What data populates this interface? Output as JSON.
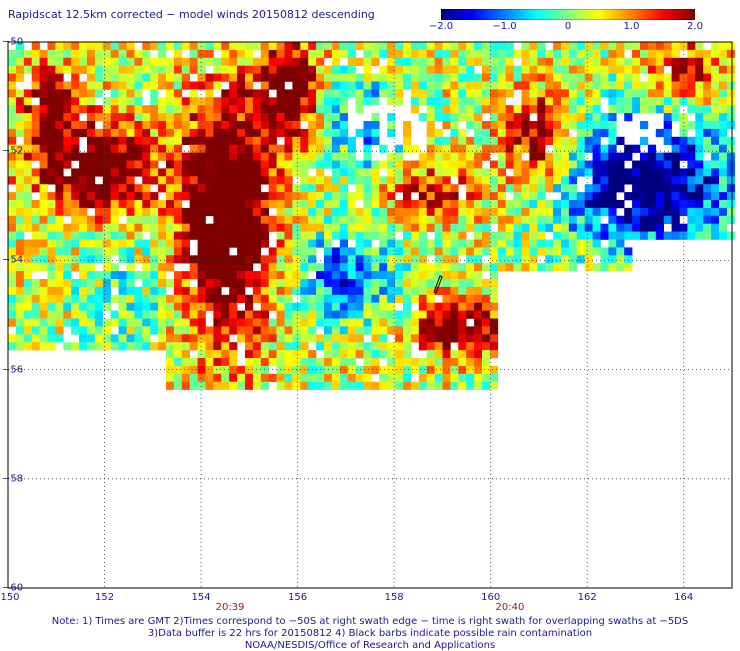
{
  "title": "Rapidscat 12.5km corrected − model winds 20150812 descending",
  "colorbar": {
    "ticks": [
      {
        "value": -2.0,
        "label": "−2.0"
      },
      {
        "value": -1.0,
        "label": "−1.0"
      },
      {
        "value": 0,
        "label": "0"
      },
      {
        "value": 1.0,
        "label": "1.0"
      },
      {
        "value": 2.0,
        "label": "2.0"
      }
    ],
    "range": [
      -2.0,
      2.0
    ],
    "colors": [
      "#00007f",
      "#0000ff",
      "#0080ff",
      "#00ffff",
      "#80ff80",
      "#ffff00",
      "#ff8000",
      "#ff0000",
      "#7f0000"
    ]
  },
  "axes": {
    "lat_labels": [
      "−50",
      "−52",
      "−54",
      "−56",
      "−58",
      "−60"
    ],
    "lat_range": [
      -50,
      -60
    ],
    "lon_labels": [
      "150",
      "152",
      "154",
      "156",
      "158",
      "160",
      "162",
      "164"
    ],
    "lon_range": [
      150,
      165
    ]
  },
  "time_labels": [
    {
      "lon": 154.6,
      "label": "20:39"
    },
    {
      "lon": 160.4,
      "label": "20:40"
    }
  ],
  "notes": [
    "Note: 1) Times are GMT 2)Times correspond to −50S at right swath edge − time is right swath for overlapping swaths at −5DS",
    "3)Data buffer is 22 hrs for 20150812 4) Black barbs indicate possible rain contamination",
    "NOAA/NESDIS/Office of Research and Applications"
  ]
}
